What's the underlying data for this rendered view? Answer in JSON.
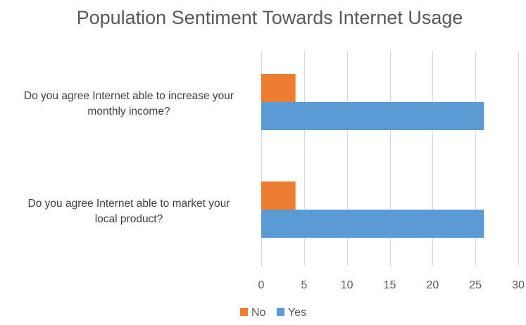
{
  "chart_data": {
    "type": "bar",
    "orientation": "horizontal",
    "title": "Population Sentiment Towards Internet Usage",
    "categories": [
      [
        "Do you agree Internet able to increase your",
        "monthly income?"
      ],
      [
        "Do you agree Internet able to market your",
        "local product?"
      ]
    ],
    "series": [
      {
        "name": "No",
        "values": [
          4,
          4
        ],
        "color": "#ed7d31"
      },
      {
        "name": "Yes",
        "values": [
          26,
          26
        ],
        "color": "#5b9bd5"
      }
    ],
    "xlim": [
      0,
      30
    ],
    "xticks": [
      0,
      5,
      10,
      15,
      20,
      25,
      30
    ],
    "grid": true,
    "legend_position": "bottom"
  }
}
